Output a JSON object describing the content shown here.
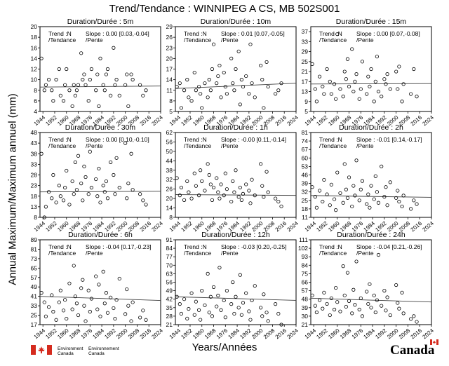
{
  "title": "Trend/Tendance : WINNIPEG A CS, MB  502S001",
  "ylabel": "Annual Maximum/Maximum annuel (mm)",
  "xlabel": "Years/Années",
  "footer": {
    "environment_canada_en": [
      "Environment",
      "Canada"
    ],
    "environment_canada_fr": [
      "Environnement",
      "Canada"
    ],
    "wordmark": "Canada"
  },
  "colors": {
    "axis": "#000000",
    "points": "#000000",
    "trend": "#404040",
    "flag_red": "#d52b1e"
  },
  "chart_data": [
    {
      "type": "scatter",
      "title": "Duration/Durée : 5m",
      "trend_label": [
        "Trend :N",
        "/Tendance"
      ],
      "slope_label": [
        "Slope : 0.00 [0.03,-0.04]",
        "/Pente"
      ],
      "xlim": [
        1942,
        2024
      ],
      "ylim": [
        4,
        20
      ],
      "xticks": [
        1944,
        1952,
        1960,
        1968,
        1976,
        1984,
        1992,
        2000,
        2008,
        2016,
        2024
      ],
      "yticks": [
        4,
        6,
        8,
        10,
        12,
        14,
        16,
        18,
        20
      ],
      "trend": [
        [
          1942,
          8.6
        ],
        [
          2024,
          8.8
        ]
      ],
      "x": [
        1943,
        1945,
        1946,
        1948,
        1950,
        1951,
        1953,
        1955,
        1956,
        1958,
        1959,
        1960,
        1962,
        1964,
        1965,
        1966,
        1967,
        1968,
        1970,
        1971,
        1972,
        1973,
        1975,
        1976,
        1977,
        1980,
        1981,
        1982,
        1983,
        1985,
        1986,
        1987,
        1988,
        1990,
        1992,
        1993,
        1994,
        1996,
        2000,
        2001,
        2002,
        2004,
        2005,
        2010,
        2012,
        2014
      ],
      "y": [
        14,
        8,
        9,
        10,
        8,
        6,
        10,
        12,
        7,
        6,
        9,
        12,
        8,
        5,
        9,
        7,
        8,
        9,
        15,
        10,
        11,
        9,
        6,
        10,
        12,
        8,
        11,
        5,
        14,
        9,
        8,
        11,
        12,
        7,
        16,
        9,
        10,
        7,
        9,
        11,
        5,
        11,
        10,
        9,
        7,
        8
      ]
    },
    {
      "type": "scatter",
      "title": "Duration/Durée : 10m",
      "trend_label": [
        "Trend :N",
        "/Tendance"
      ],
      "slope_label": [
        "Slope : 0.01 [0.07,-0.05]",
        "/Pente"
      ],
      "xlim": [
        1942,
        2024
      ],
      "ylim": [
        5,
        29
      ],
      "xticks": [
        1944,
        1952,
        1960,
        1968,
        1976,
        1984,
        1992,
        2000,
        2008,
        2016,
        2024
      ],
      "yticks": [
        5,
        8,
        11,
        14,
        17,
        20,
        23,
        26,
        29
      ],
      "trend": [
        [
          1942,
          11.5
        ],
        [
          2024,
          13.0
        ]
      ],
      "x": [
        1943,
        1945,
        1946,
        1948,
        1950,
        1951,
        1953,
        1955,
        1956,
        1958,
        1959,
        1960,
        1962,
        1964,
        1965,
        1966,
        1967,
        1968,
        1970,
        1971,
        1972,
        1973,
        1975,
        1976,
        1977,
        1980,
        1981,
        1982,
        1983,
        1985,
        1986,
        1987,
        1988,
        1990,
        1992,
        1993,
        1994,
        1996,
        2000,
        2001,
        2002,
        2004,
        2005,
        2010,
        2012,
        2014
      ],
      "y": [
        12,
        13,
        6,
        11,
        14,
        9,
        8,
        16,
        11,
        12,
        10,
        6,
        13,
        9,
        14,
        11,
        17,
        24,
        13,
        15,
        18,
        9,
        16,
        12,
        10,
        20,
        13,
        11,
        17,
        22,
        7,
        14,
        12,
        15,
        10,
        24,
        13,
        9,
        18,
        14,
        6,
        19,
        12,
        10,
        11,
        13
      ]
    },
    {
      "type": "scatter",
      "title": "Duration/Durée : 15m",
      "trend_label": [
        "Trend :N",
        "/Tendance"
      ],
      "slope_label": [
        "Slope : 0.00 [0.07,-0.08]",
        "/Pente"
      ],
      "xlim": [
        1942,
        2024
      ],
      "ylim": [
        5,
        39
      ],
      "xticks": [
        1944,
        1952,
        1960,
        1968,
        1976,
        1984,
        1992,
        2000,
        2008,
        2016,
        2024
      ],
      "yticks": [
        5,
        9,
        13,
        17,
        21,
        25,
        29,
        33,
        37
      ],
      "trend": [
        [
          1942,
          16.0
        ],
        [
          2024,
          16.2
        ]
      ],
      "x": [
        1943,
        1945,
        1946,
        1948,
        1950,
        1951,
        1953,
        1955,
        1956,
        1958,
        1959,
        1960,
        1962,
        1964,
        1965,
        1966,
        1967,
        1968,
        1970,
        1971,
        1972,
        1973,
        1975,
        1976,
        1977,
        1980,
        1981,
        1982,
        1983,
        1985,
        1986,
        1987,
        1988,
        1990,
        1992,
        1993,
        1994,
        1996,
        2000,
        2001,
        2002,
        2004,
        2005,
        2010,
        2012,
        2014
      ],
      "y": [
        24,
        14,
        9,
        19,
        15,
        12,
        22,
        17,
        12,
        16,
        10,
        36,
        14,
        11,
        21,
        18,
        26,
        15,
        30,
        13,
        17,
        20,
        10,
        14,
        25,
        12,
        19,
        15,
        22,
        9,
        17,
        27,
        13,
        11,
        18,
        16,
        20,
        14,
        21,
        14,
        23,
        9,
        16,
        12,
        22,
        11
      ]
    },
    {
      "type": "scatter",
      "title": "Duration/Durée : 30m",
      "trend_label": [
        "Trend :N",
        "/Tendance"
      ],
      "slope_label": [
        "Slope : 0.00 [0.10,-0.10]",
        "/Pente"
      ],
      "xlim": [
        1942,
        2024
      ],
      "ylim": [
        8,
        48
      ],
      "xticks": [
        1944,
        1952,
        1960,
        1968,
        1976,
        1984,
        1992,
        2000,
        2008,
        2016,
        2024
      ],
      "yticks": [
        8,
        13,
        18,
        23,
        28,
        33,
        38,
        43,
        48
      ],
      "trend": [
        [
          1942,
          20.0
        ],
        [
          2024,
          20.3
        ]
      ],
      "x": [
        1943,
        1945,
        1946,
        1948,
        1950,
        1951,
        1953,
        1955,
        1956,
        1958,
        1959,
        1960,
        1962,
        1964,
        1965,
        1966,
        1967,
        1968,
        1970,
        1971,
        1972,
        1973,
        1975,
        1976,
        1977,
        1980,
        1981,
        1982,
        1983,
        1985,
        1986,
        1987,
        1988,
        1990,
        1992,
        1993,
        1994,
        1996,
        2000,
        2001,
        2002,
        2004,
        2005,
        2010,
        2012,
        2014
      ],
      "y": [
        38,
        8,
        13,
        20,
        17,
        28,
        15,
        23,
        18,
        16,
        22,
        30,
        14,
        25,
        19,
        34,
        21,
        37,
        24,
        16,
        32,
        27,
        19,
        39,
        22,
        26,
        18,
        31,
        15,
        23,
        20,
        25,
        17,
        34,
        28,
        19,
        36,
        22,
        43,
        17,
        24,
        38,
        21,
        19,
        16,
        14
      ]
    },
    {
      "type": "scatter",
      "title": "Duration/Durée : 1h",
      "trend_label": [
        "Trend :N",
        "/Tendance"
      ],
      "slope_label": [
        "Slope : -0.00 [0.11,-0.14]",
        "/Pente"
      ],
      "xlim": [
        1942,
        2024
      ],
      "ylim": [
        8,
        62
      ],
      "xticks": [
        1944,
        1952,
        1960,
        1968,
        1976,
        1984,
        1992,
        2000,
        2008,
        2016,
        2024
      ],
      "yticks": [
        8,
        14,
        20,
        26,
        32,
        38,
        44,
        50,
        56,
        62
      ],
      "trend": [
        [
          1942,
          22.5
        ],
        [
          2024,
          22.0
        ]
      ],
      "x": [
        1943,
        1945,
        1946,
        1948,
        1950,
        1951,
        1953,
        1955,
        1956,
        1958,
        1959,
        1960,
        1962,
        1964,
        1965,
        1966,
        1967,
        1968,
        1970,
        1971,
        1972,
        1973,
        1975,
        1976,
        1977,
        1980,
        1981,
        1982,
        1983,
        1985,
        1986,
        1987,
        1988,
        1990,
        1992,
        1993,
        1994,
        1996,
        2000,
        2001,
        2002,
        2004,
        2005,
        2010,
        2012,
        2014
      ],
      "y": [
        33,
        22,
        27,
        19,
        31,
        24,
        20,
        36,
        28,
        22,
        38,
        31,
        25,
        42,
        35,
        29,
        19,
        27,
        33,
        24,
        20,
        29,
        22,
        36,
        26,
        18,
        31,
        24,
        38,
        21,
        27,
        19,
        23,
        29,
        25,
        17,
        32,
        22,
        42,
        28,
        21,
        37,
        24,
        20,
        18,
        15
      ]
    },
    {
      "type": "scatter",
      "title": "Duration/Durée : 2h",
      "trend_label": [
        "Trend :N",
        "/Tendance"
      ],
      "slope_label": [
        "Slope : -0.01 [0.14,-0.17]",
        "/Pente"
      ],
      "xlim": [
        1942,
        2024
      ],
      "ylim": [
        11,
        81
      ],
      "xticks": [
        1944,
        1952,
        1960,
        1968,
        1976,
        1984,
        1992,
        2000,
        2008,
        2016,
        2024
      ],
      "yticks": [
        11,
        18,
        25,
        32,
        39,
        46,
        53,
        60,
        67,
        74,
        81
      ],
      "trend": [
        [
          1942,
          29.0
        ],
        [
          2024,
          27.5
        ]
      ],
      "x": [
        1943,
        1945,
        1946,
        1948,
        1950,
        1951,
        1953,
        1955,
        1956,
        1958,
        1959,
        1960,
        1962,
        1964,
        1965,
        1966,
        1967,
        1968,
        1970,
        1971,
        1972,
        1973,
        1975,
        1976,
        1977,
        1980,
        1981,
        1982,
        1983,
        1985,
        1986,
        1987,
        1988,
        1990,
        1992,
        1993,
        1994,
        1996,
        2000,
        2001,
        2002,
        2004,
        2005,
        2010,
        2012,
        2014
      ],
      "y": [
        36,
        28,
        19,
        33,
        24,
        42,
        30,
        21,
        38,
        26,
        17,
        48,
        31,
        23,
        55,
        34,
        27,
        44,
        20,
        37,
        29,
        58,
        25,
        34,
        41,
        22,
        30,
        19,
        37,
        26,
        45,
        32,
        23,
        53,
        28,
        36,
        21,
        40,
        27,
        33,
        24,
        20,
        29,
        18,
        25,
        22
      ]
    },
    {
      "type": "scatter",
      "title": "Duration/Durée : 6h",
      "trend_label": [
        "Trend :N",
        "/Tendance"
      ],
      "slope_label": [
        "Slope : -0.04 [0.17,-0.23]",
        "/Pente"
      ],
      "xlim": [
        1942,
        2024
      ],
      "ylim": [
        17,
        89
      ],
      "xticks": [
        1944,
        1952,
        1960,
        1968,
        1976,
        1984,
        1992,
        2000,
        2008,
        2016,
        2024
      ],
      "yticks": [
        17,
        25,
        33,
        41,
        49,
        57,
        65,
        73,
        81,
        89
      ],
      "trend": [
        [
          1942,
          41.0
        ],
        [
          2024,
          37.5
        ]
      ],
      "x": [
        1943,
        1945,
        1946,
        1948,
        1950,
        1951,
        1953,
        1955,
        1956,
        1958,
        1959,
        1960,
        1962,
        1964,
        1965,
        1966,
        1967,
        1968,
        1970,
        1971,
        1972,
        1973,
        1975,
        1976,
        1977,
        1980,
        1981,
        1982,
        1983,
        1985,
        1986,
        1987,
        1988,
        1990,
        1992,
        1993,
        1994,
        1996,
        2000,
        2001,
        2002,
        2004,
        2005,
        2010,
        2012,
        2014
      ],
      "y": [
        44,
        36,
        24,
        32,
        42,
        28,
        21,
        36,
        46,
        29,
        38,
        22,
        52,
        30,
        67,
        41,
        35,
        25,
        48,
        55,
        33,
        20,
        46,
        28,
        39,
        58,
        30,
        51,
        24,
        62,
        35,
        44,
        27,
        40,
        31,
        22,
        38,
        56,
        26,
        47,
        33,
        20,
        36,
        23,
        29,
        21
      ]
    },
    {
      "type": "scatter",
      "title": "Duration/Durée : 12h",
      "trend_label": [
        "Trend :N",
        "/Tendance"
      ],
      "slope_label": [
        "Slope : -0.03 [0.20,-0.25]",
        "/Pente"
      ],
      "xlim": [
        1942,
        2024
      ],
      "ylim": [
        21,
        91
      ],
      "xticks": [
        1944,
        1952,
        1960,
        1968,
        1976,
        1984,
        1992,
        2000,
        2008,
        2016,
        2024
      ],
      "yticks": [
        21,
        28,
        35,
        42,
        49,
        56,
        63,
        70,
        77,
        84,
        91
      ],
      "trend": [
        [
          1942,
          44.0
        ],
        [
          2024,
          41.0
        ]
      ],
      "x": [
        1943,
        1945,
        1946,
        1948,
        1950,
        1951,
        1953,
        1955,
        1956,
        1958,
        1959,
        1960,
        1962,
        1964,
        1965,
        1966,
        1967,
        1968,
        1970,
        1971,
        1972,
        1973,
        1975,
        1976,
        1977,
        1980,
        1981,
        1982,
        1983,
        1985,
        1986,
        1987,
        1988,
        1990,
        1992,
        1993,
        1994,
        1996,
        2000,
        2001,
        2002,
        2004,
        2005,
        2010,
        2012,
        2014
      ],
      "y": [
        44,
        38,
        30,
        42,
        26,
        34,
        47,
        29,
        40,
        33,
        25,
        49,
        37,
        63,
        31,
        44,
        28,
        52,
        36,
        45,
        68,
        33,
        41,
        27,
        49,
        38,
        56,
        30,
        44,
        35,
        62,
        29,
        39,
        47,
        32,
        25,
        41,
        53,
        35,
        28,
        46,
        31,
        24,
        38,
        30,
        21
      ]
    },
    {
      "type": "scatter",
      "title": "Duration/Durée : 24h",
      "trend_label": [
        "Trend :N",
        "/Tendance"
      ],
      "slope_label": [
        "Slope : -0.04 [0.21,-0.26]",
        "/Pente"
      ],
      "xlim": [
        1942,
        2024
      ],
      "ylim": [
        21,
        111
      ],
      "xticks": [
        1944,
        1952,
        1960,
        1968,
        1976,
        1984,
        1992,
        2000,
        2008,
        2016,
        2024
      ],
      "yticks": [
        21,
        30,
        39,
        48,
        57,
        66,
        75,
        84,
        93,
        102,
        111
      ],
      "trend": [
        [
          1942,
          49.0
        ],
        [
          2024,
          45.0
        ]
      ],
      "x": [
        1943,
        1945,
        1946,
        1948,
        1950,
        1951,
        1953,
        1955,
        1956,
        1958,
        1959,
        1960,
        1962,
        1964,
        1965,
        1966,
        1967,
        1968,
        1970,
        1971,
        1972,
        1973,
        1975,
        1976,
        1977,
        1980,
        1981,
        1982,
        1983,
        1985,
        1986,
        1987,
        1988,
        1990,
        1992,
        1993,
        1994,
        1996,
        2000,
        2001,
        2002,
        2004,
        2005,
        2010,
        2012,
        2014
      ],
      "y": [
        52,
        41,
        34,
        47,
        38,
        55,
        43,
        31,
        49,
        37,
        60,
        45,
        35,
        83,
        52,
        40,
        76,
        46,
        33,
        58,
        42,
        88,
        37,
        49,
        30,
        56,
        43,
        64,
        39,
        52,
        34,
        47,
        95,
        41,
        57,
        36,
        50,
        31,
        63,
        44,
        38,
        55,
        33,
        27,
        30,
        24
      ]
    }
  ]
}
